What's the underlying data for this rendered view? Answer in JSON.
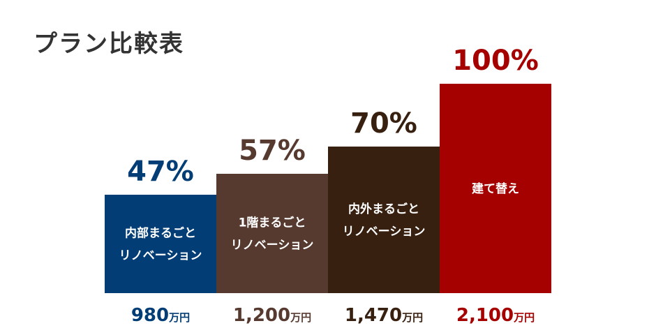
{
  "title": "プラン比較表",
  "chart_data": {
    "type": "bar",
    "title": "プラン比較表",
    "categories": [
      [
        "内部まるごと",
        "リノベーション"
      ],
      [
        "1階まるごと",
        "リノベーション"
      ],
      [
        "内外まるごと",
        "リノベーション"
      ],
      [
        "建て替え"
      ]
    ],
    "values": [
      47,
      57,
      70,
      100
    ],
    "value_labels": [
      "47%",
      "57%",
      "70%",
      "100%"
    ],
    "prices": [
      "980",
      "1,200",
      "1,470",
      "2,100"
    ],
    "price_unit": "万円",
    "colors": [
      "#033d75",
      "#563a30",
      "#382010",
      "#a60101"
    ],
    "ylim": [
      0,
      100
    ],
    "grid": false,
    "legend": "none"
  }
}
